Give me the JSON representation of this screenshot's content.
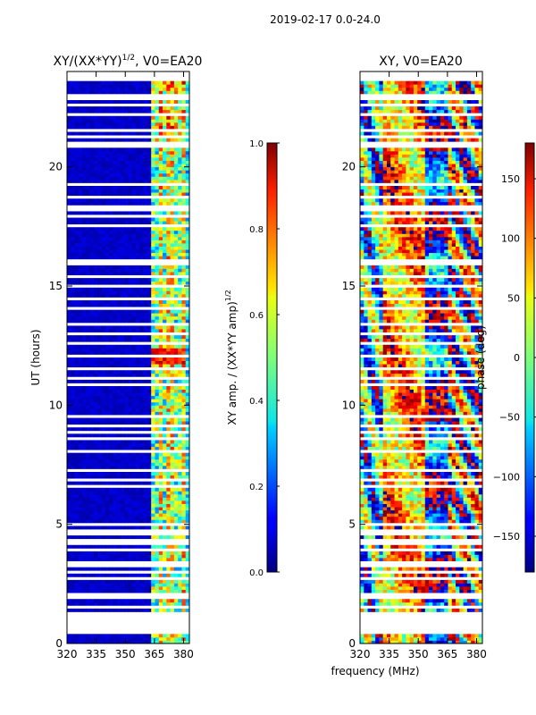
{
  "figure_title": "2019-02-17 0.0-24.0",
  "x_label": "frequency (MHz)",
  "chart_data": [
    {
      "type": "heatmap",
      "title": "XY/(XX*YY)",
      "title_exponent": "1/2",
      "title_suffix": ", V0=EA20",
      "ylabel": "UT (hours)",
      "xlim": [
        320,
        383
      ],
      "ylim": [
        0,
        24
      ],
      "xticks": [
        "320",
        "335",
        "350",
        "365",
        "380"
      ],
      "xtick_values": [
        320,
        335,
        350,
        365,
        380
      ],
      "yticks": [
        "0",
        "5",
        "10",
        "15",
        "20"
      ],
      "ytick_values": [
        0,
        5,
        10,
        15,
        20
      ],
      "colorbar": {
        "label": "XY amp. / (XX*YY amp)",
        "label_exponent": "1/2",
        "range": [
          0,
          1
        ],
        "ticks": [
          "0.0",
          "0.2",
          "0.4",
          "0.6",
          "0.8",
          "1.0"
        ],
        "tick_values": [
          0,
          0.2,
          0.4,
          0.6,
          0.8,
          1.0
        ]
      }
    },
    {
      "type": "heatmap",
      "title": "XY, V0=EA20",
      "xlim": [
        320,
        383
      ],
      "ylim": [
        0,
        24
      ],
      "xticks": [
        "320",
        "335",
        "350",
        "365",
        "380"
      ],
      "xtick_values": [
        320,
        335,
        350,
        365,
        380
      ],
      "yticks": [
        "0",
        "5",
        "10",
        "15",
        "20"
      ],
      "ytick_values": [
        0,
        5,
        10,
        15,
        20
      ],
      "colorbar": {
        "label": "phase (deg)",
        "range": [
          -180,
          180
        ],
        "ticks": [
          "−150",
          "−100",
          "−50",
          "0",
          "50",
          "100",
          "150"
        ],
        "tick_values": [
          -150,
          -100,
          -50,
          0,
          50,
          100,
          150
        ]
      }
    }
  ],
  "flagged_ut_hours": [
    0.45,
    0.5,
    0.6,
    0.75,
    0.9,
    1.0,
    1.1,
    1.3,
    1.55,
    1.9,
    2.1,
    2.7,
    2.95,
    3.25,
    3.45,
    3.6,
    3.95,
    4.15,
    4.3,
    4.55,
    4.75,
    4.95,
    6.6,
    6.9,
    7.3,
    8.1,
    8.6,
    8.85,
    9.15,
    9.5,
    10.9,
    11.1,
    11.55,
    12.1,
    12.55,
    12.8,
    13.05,
    13.2,
    13.35,
    14.1,
    14.45,
    14.8,
    15.0,
    15.4,
    15.6,
    15.9,
    16.1,
    16.4,
    16.8,
    17.5,
    17.9,
    18.15,
    18.3,
    18.7,
    19.3,
    19.6,
    20.0,
    20.85,
    21.0,
    21.25,
    21.55,
    22.2,
    22.6,
    22.85,
    23.05
  ]
}
